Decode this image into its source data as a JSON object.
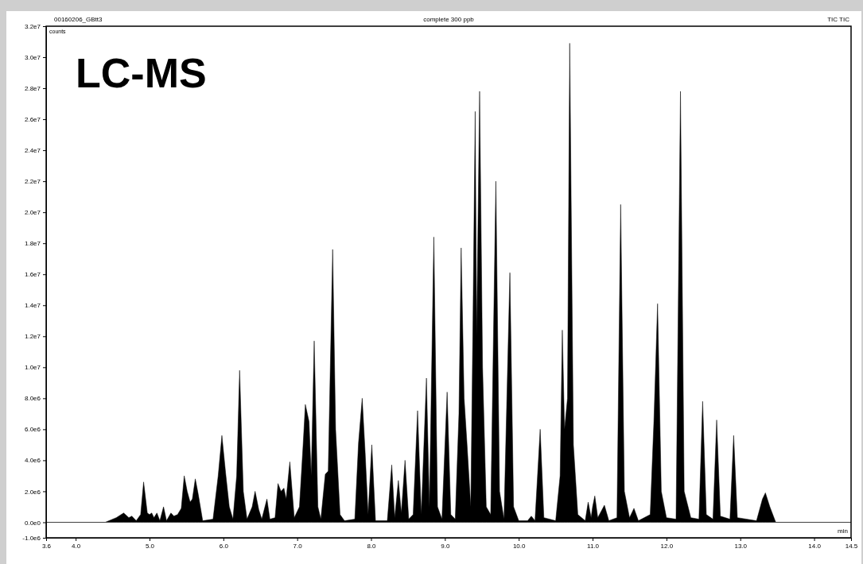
{
  "chart_data": {
    "type": "area",
    "title": "LC-MS",
    "xlabel": "min",
    "ylabel": "counts",
    "annotations": [
      "00160206_GBtt3",
      "complete 300 ppb",
      "TIC TIC"
    ],
    "xlim": [
      3.6,
      14.5
    ],
    "xticks": [
      {
        "value": 3.6,
        "label": "3.6"
      },
      {
        "value": 4,
        "label": "4.0"
      },
      {
        "value": 5,
        "label": "5.0"
      },
      {
        "value": 6,
        "label": "6.0"
      },
      {
        "value": 7,
        "label": "7.0"
      },
      {
        "value": 8,
        "label": "8.0"
      },
      {
        "value": 9,
        "label": "9.0"
      },
      {
        "value": 10,
        "label": "10.0"
      },
      {
        "value": 11,
        "label": "11.0"
      },
      {
        "value": 12,
        "label": "12.0"
      },
      {
        "value": 13,
        "label": "13.0"
      },
      {
        "value": 14,
        "label": "14.0"
      },
      14.5
    ],
    "ylim": [
      -1000000.0,
      32000000.0
    ],
    "yticks": [
      {
        "value": -1000000.0,
        "label": "-1.0e6"
      },
      {
        "value": 0,
        "label": "0.0e0"
      },
      {
        "value": 2000000.0,
        "label": "2.0e6"
      },
      {
        "value": 4000000.0,
        "label": "4.0e6"
      },
      {
        "value": 6000000.0,
        "label": "6.0e6"
      },
      {
        "value": 8000000.0,
        "label": "8.0e6"
      },
      {
        "value": 10000000.0,
        "label": "1.0e7"
      },
      {
        "value": 12000000.0,
        "label": "1.2e7"
      },
      {
        "value": 14000000.0,
        "label": "1.4e7"
      },
      {
        "value": 16000000.0,
        "label": "1.6e7"
      },
      {
        "value": 18000000.0,
        "label": "1.8e7"
      },
      {
        "value": 20000000.0,
        "label": "2.0e7"
      },
      {
        "value": 22000000.0,
        "label": "2.2e7"
      },
      {
        "value": 24000000.0,
        "label": "2.4e7"
      },
      {
        "value": 26000000.0,
        "label": "2.6e7"
      },
      {
        "value": 28000000.0,
        "label": "2.8e7"
      },
      {
        "value": 30000000.0,
        "label": "3.0e7"
      },
      {
        "value": 32000000.0,
        "label": "3.2e7"
      }
    ],
    "grid": false,
    "marker": "none",
    "series": [
      {
        "color": "#000000",
        "x": [
          3.6,
          4.4,
          4.55,
          4.65,
          4.72,
          4.76,
          4.82,
          4.88,
          4.92,
          4.97,
          5.0,
          5.03,
          5.06,
          5.1,
          5.14,
          5.19,
          5.23,
          5.29,
          5.33,
          5.38,
          5.43,
          5.47,
          5.51,
          5.55,
          5.58,
          5.62,
          5.66,
          5.72,
          5.86,
          5.93,
          5.98,
          6.03,
          6.08,
          6.13,
          6.18,
          6.22,
          6.27,
          6.32,
          6.39,
          6.43,
          6.48,
          6.52,
          6.59,
          6.63,
          6.7,
          6.74,
          6.78,
          6.82,
          6.85,
          6.9,
          6.96,
          7.03,
          7.08,
          7.11,
          7.16,
          7.19,
          7.23,
          7.28,
          7.32,
          7.38,
          7.42,
          7.48,
          7.52,
          7.58,
          7.64,
          7.78,
          7.83,
          7.88,
          7.92,
          7.96,
          8.01,
          8.06,
          8.22,
          8.28,
          8.32,
          8.37,
          8.41,
          8.46,
          8.51,
          8.57,
          8.63,
          8.68,
          8.75,
          8.79,
          8.85,
          8.9,
          8.96,
          9.03,
          9.08,
          9.14,
          9.19,
          9.22,
          9.26,
          9.3,
          9.35,
          9.38,
          9.41,
          9.43,
          9.47,
          9.51,
          9.56,
          9.62,
          9.69,
          9.74,
          9.8,
          9.88,
          9.93,
          10.0,
          10.12,
          10.17,
          10.22,
          10.29,
          10.34,
          10.5,
          10.56,
          10.59,
          10.62,
          10.66,
          10.69,
          10.74,
          10.8,
          10.9,
          10.94,
          10.98,
          11.0,
          11.03,
          11.07,
          11.16,
          11.22,
          11.33,
          11.38,
          11.43,
          11.5,
          11.56,
          11.62,
          11.78,
          11.83,
          11.88,
          11.93,
          12.0,
          12.13,
          12.19,
          12.24,
          12.33,
          12.44,
          12.49,
          12.54,
          12.63,
          12.68,
          12.73,
          12.86,
          12.91,
          12.96,
          13.22,
          13.3,
          13.34,
          13.4,
          13.48,
          14.5
        ],
        "values": [
          0,
          0,
          300000.0,
          600000.0,
          300000.0,
          400000.0,
          100000.0,
          500000.0,
          2600000.0,
          600000.0,
          500000.0,
          600000.0,
          300000.0,
          600000.0,
          100000.0,
          1000000.0,
          100000.0,
          600000.0,
          400000.0,
          500000.0,
          900000.0,
          3000000.0,
          2000000.0,
          1300000.0,
          1500000.0,
          2800000.0,
          1800000.0,
          100000.0,
          200000.0,
          3000000.0,
          5600000.0,
          3200000.0,
          1000000.0,
          200000.0,
          3000000.0,
          9800000.0,
          2000000.0,
          200000.0,
          1000000.0,
          2000000.0,
          800000.0,
          200000.0,
          1500000.0,
          200000.0,
          300000.0,
          2500000.0,
          2000000.0,
          2200000.0,
          1500000.0,
          3900000.0,
          300000.0,
          1000000.0,
          5000000.0,
          7600000.0,
          6500000.0,
          3000000.0,
          11700000.0,
          1000000.0,
          200000.0,
          3100000.0,
          3300000.0,
          17600000.0,
          6000000.0,
          500000.0,
          100000.0,
          200000.0,
          5100000.0,
          8000000.0,
          4500000.0,
          500000.0,
          5000000.0,
          100000.0,
          100000.0,
          3700000.0,
          300000.0,
          2700000.0,
          600000.0,
          4000000.0,
          200000.0,
          500000.0,
          7200000.0,
          500000.0,
          9300000.0,
          1000000.0,
          18400000.0,
          1000000.0,
          200000.0,
          8400000.0,
          500000.0,
          200000.0,
          7000000.0,
          17700000.0,
          8000000.0,
          5000000.0,
          1000000.0,
          13000000.0,
          26500000.0,
          12000000.0,
          27800000.0,
          10000000.0,
          1000000.0,
          500000.0,
          22000000.0,
          2000000.0,
          200000.0,
          16100000.0,
          1000000.0,
          100000.0,
          100000.0,
          400000.0,
          100000.0,
          6000000.0,
          300000.0,
          100000.0,
          3000000.0,
          12400000.0,
          6000000.0,
          8000000.0,
          30900000.0,
          5000000.0,
          500000.0,
          100000.0,
          1300000.0,
          300000.0,
          1000000.0,
          1700000.0,
          300000.0,
          1100000.0,
          100000.0,
          300000.0,
          20500000.0,
          2000000.0,
          300000.0,
          900000.0,
          100000.0,
          500000.0,
          6500000.0,
          14100000.0,
          2000000.0,
          300000.0,
          200000.0,
          27800000.0,
          2000000.0,
          300000.0,
          200000.0,
          7800000.0,
          500000.0,
          200000.0,
          6600000.0,
          400000.0,
          200000.0,
          5600000.0,
          300000.0,
          100000.0,
          1500000.0,
          1900000.0,
          1000000.0,
          0,
          0
        ]
      }
    ]
  }
}
